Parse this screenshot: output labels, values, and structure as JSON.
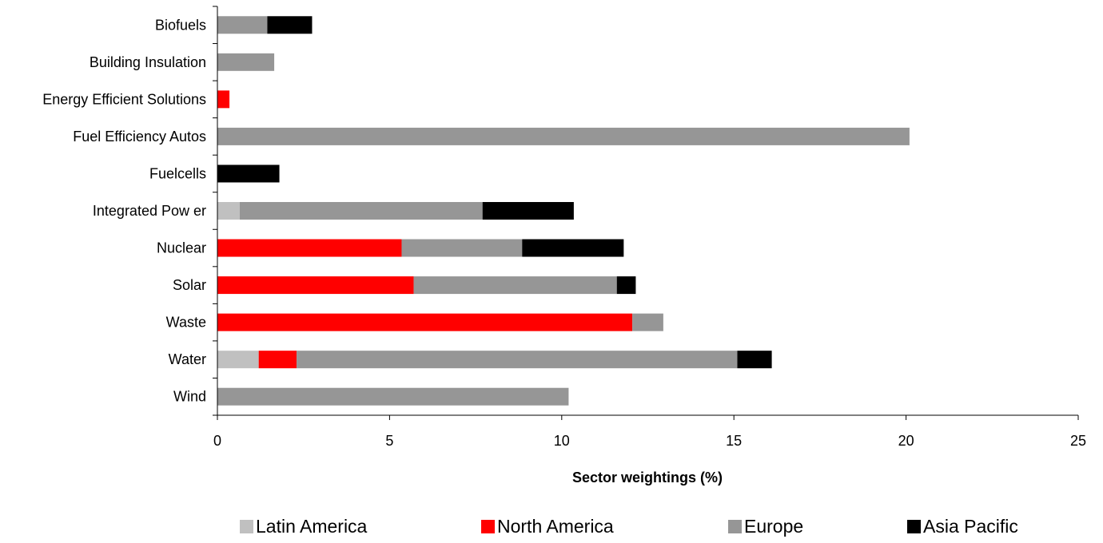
{
  "chart_data": {
    "type": "bar",
    "orientation": "horizontal",
    "stacked": true,
    "title": "",
    "xlabel": "Sector weightings (%)",
    "ylabel": "",
    "xlim": [
      0,
      25
    ],
    "x_ticks": [
      0,
      5,
      10,
      15,
      20,
      25
    ],
    "grid": false,
    "legend_position": "bottom",
    "categories": [
      "Biofuels",
      "Building Insulation",
      "Energy Efficient Solutions",
      "Fuel Efficiency Autos",
      "Fuelcells",
      "Integrated Pow er",
      "Nuclear",
      "Solar",
      "Waste",
      "Water",
      "Wind"
    ],
    "series": [
      {
        "name": "Latin America",
        "color": "#c0c0c0",
        "values": [
          0,
          0,
          0,
          0,
          0,
          0.65,
          0,
          0,
          0,
          1.2,
          0
        ]
      },
      {
        "name": "North America",
        "color": "#ff0000",
        "values": [
          0,
          0,
          0.35,
          0,
          0,
          0,
          5.35,
          5.7,
          12.05,
          1.1,
          0
        ]
      },
      {
        "name": "Europe",
        "color": "#969696",
        "values": [
          1.45,
          1.65,
          0,
          20.1,
          0,
          7.05,
          3.5,
          5.9,
          0.9,
          12.8,
          10.2
        ]
      },
      {
        "name": "Asia Pacific",
        "color": "#000000",
        "values": [
          1.3,
          0,
          0,
          0,
          1.8,
          2.65,
          2.95,
          0.55,
          0,
          1.0,
          0
        ]
      }
    ]
  }
}
